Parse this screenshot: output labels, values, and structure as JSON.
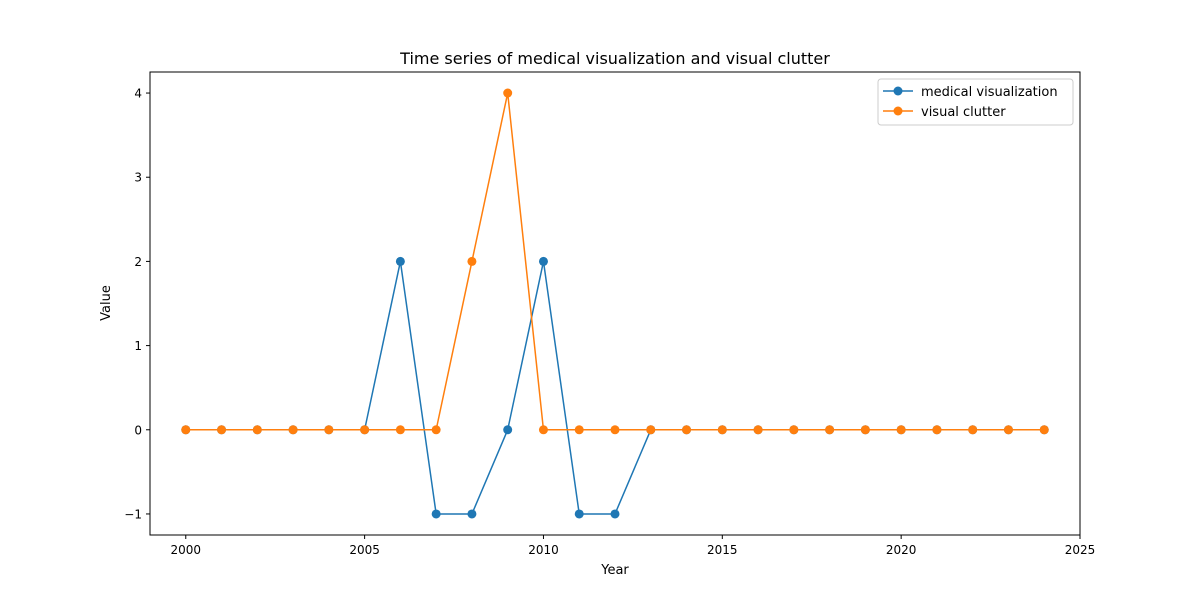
{
  "chart_data": {
    "type": "line",
    "title": "Time series of medical visualization and visual clutter",
    "xlabel": "Year",
    "ylabel": "Value",
    "xlim": [
      1999,
      2025
    ],
    "ylim": [
      -1.25,
      4.25
    ],
    "xticks": [
      2000,
      2005,
      2010,
      2015,
      2020,
      2025
    ],
    "xtick_labels": [
      "2000",
      "2005",
      "2010",
      "2015",
      "2020",
      "2025"
    ],
    "yticks": [
      -1,
      0,
      1,
      2,
      3,
      4
    ],
    "ytick_labels": [
      "−1",
      "0",
      "1",
      "2",
      "3",
      "4"
    ],
    "grid": false,
    "legend_position": "top-right",
    "x": [
      2000,
      2001,
      2002,
      2003,
      2004,
      2005,
      2006,
      2007,
      2008,
      2009,
      2010,
      2011,
      2012,
      2013,
      2014,
      2015,
      2016,
      2017,
      2018,
      2019,
      2020,
      2021,
      2022,
      2023,
      2024
    ],
    "series": [
      {
        "name": "medical visualization",
        "color": "#1f77b4",
        "values": [
          0,
          0,
          0,
          0,
          0,
          0,
          2,
          -1,
          -1,
          0,
          2,
          -1,
          -1,
          0,
          0,
          0,
          0,
          0,
          0,
          0,
          0,
          0,
          0,
          0,
          0
        ]
      },
      {
        "name": "visual clutter",
        "color": "#ff7f0e",
        "values": [
          0,
          0,
          0,
          0,
          0,
          0,
          0,
          0,
          2,
          4,
          0,
          0,
          0,
          0,
          0,
          0,
          0,
          0,
          0,
          0,
          0,
          0,
          0,
          0,
          0
        ]
      }
    ]
  }
}
